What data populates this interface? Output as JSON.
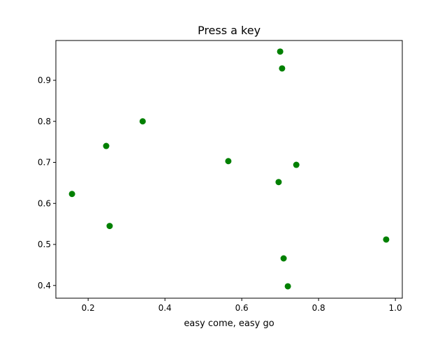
{
  "chart_data": {
    "type": "scatter",
    "title": "Press a key",
    "xlabel": "easy come, easy go",
    "ylabel": "",
    "xlim": [
      0.116,
      1.018
    ],
    "ylim": [
      0.369,
      0.997
    ],
    "xticks": [
      0.2,
      0.4,
      0.6,
      0.8,
      1.0
    ],
    "xtick_labels": [
      "0.2",
      "0.4",
      "0.6",
      "0.8",
      "1.0"
    ],
    "yticks": [
      0.4,
      0.5,
      0.6,
      0.7,
      0.8,
      0.9
    ],
    "ytick_labels": [
      "0.4",
      "0.5",
      "0.6",
      "0.7",
      "0.8",
      "0.9"
    ],
    "grid": false,
    "color": "#008000",
    "points": [
      {
        "x": 0.7,
        "y": 0.97
      },
      {
        "x": 0.705,
        "y": 0.929
      },
      {
        "x": 0.342,
        "y": 0.8
      },
      {
        "x": 0.247,
        "y": 0.74
      },
      {
        "x": 0.565,
        "y": 0.703
      },
      {
        "x": 0.742,
        "y": 0.694
      },
      {
        "x": 0.696,
        "y": 0.652
      },
      {
        "x": 0.158,
        "y": 0.623
      },
      {
        "x": 0.256,
        "y": 0.545
      },
      {
        "x": 0.976,
        "y": 0.512
      },
      {
        "x": 0.709,
        "y": 0.466
      },
      {
        "x": 0.72,
        "y": 0.398
      }
    ]
  }
}
